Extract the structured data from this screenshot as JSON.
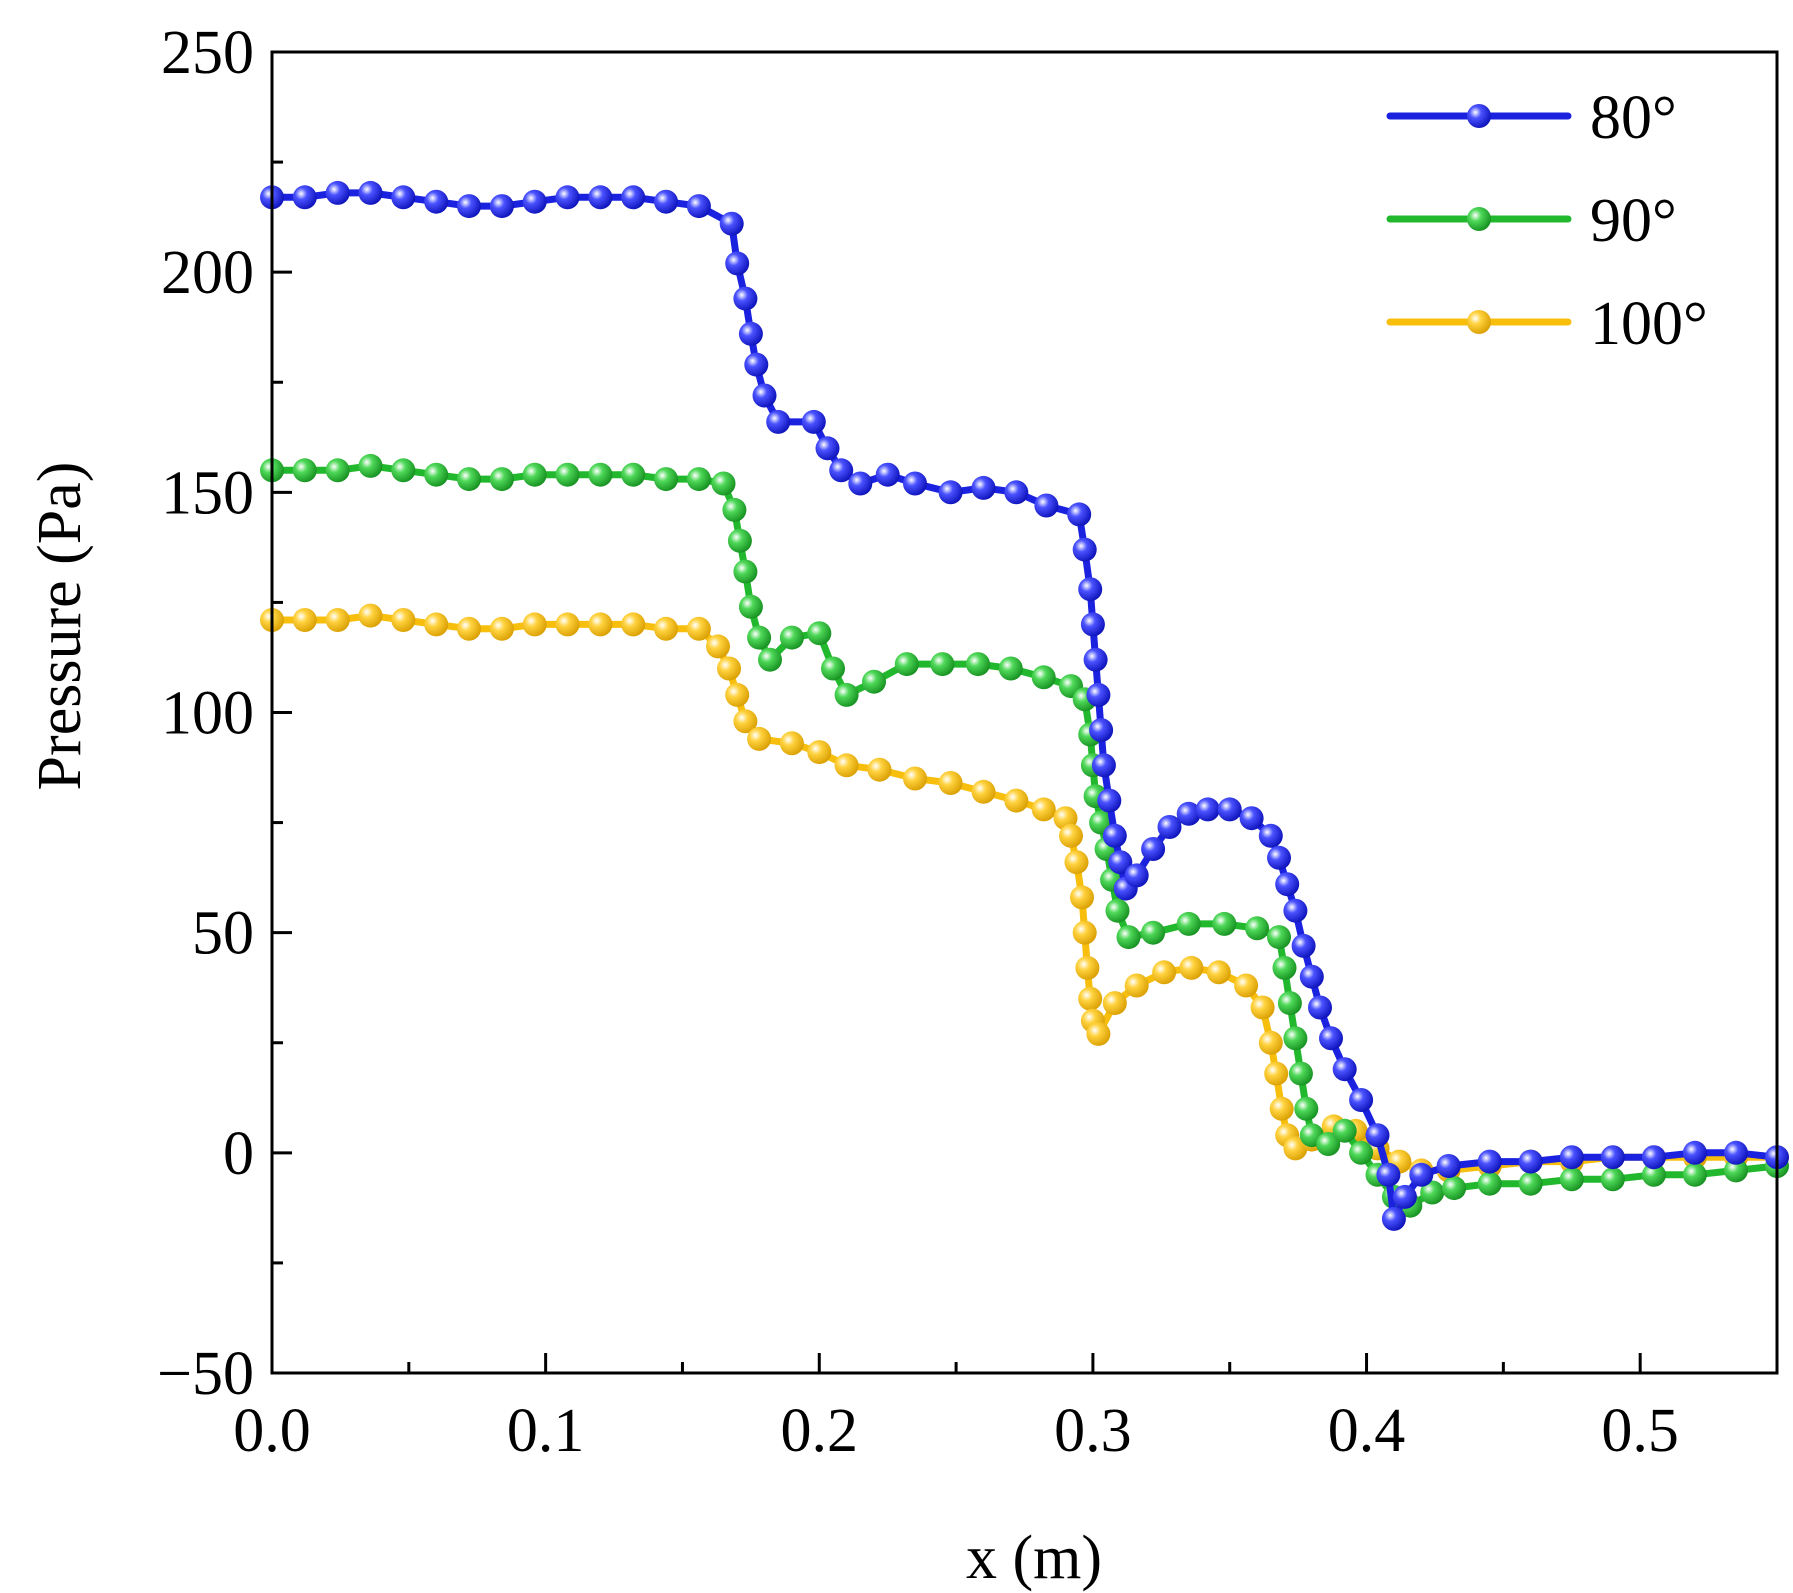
{
  "chart_data": {
    "type": "line",
    "title": "",
    "xlabel": "x (m)",
    "ylabel": "Pressure (Pa)",
    "xlim": [
      0.0,
      0.55
    ],
    "ylim": [
      -50,
      250
    ],
    "x_ticks": [
      0.0,
      0.1,
      0.2,
      0.3,
      0.4,
      0.5
    ],
    "x_tick_labels": [
      "0.0",
      "0.1",
      "0.2",
      "0.3",
      "0.4",
      "0.5"
    ],
    "y_ticks": [
      -50,
      0,
      50,
      100,
      150,
      200,
      250
    ],
    "y_tick_labels": [
      "−50",
      "0",
      "50",
      "100",
      "150",
      "200",
      "250"
    ],
    "legend_position": "top-right",
    "series": [
      {
        "name": "80°",
        "color": "#1a22e0",
        "points": [
          [
            0.0,
            217
          ],
          [
            0.012,
            217
          ],
          [
            0.024,
            218
          ],
          [
            0.036,
            218
          ],
          [
            0.048,
            217
          ],
          [
            0.06,
            216
          ],
          [
            0.072,
            215
          ],
          [
            0.084,
            215
          ],
          [
            0.096,
            216
          ],
          [
            0.108,
            217
          ],
          [
            0.12,
            217
          ],
          [
            0.132,
            217
          ],
          [
            0.144,
            216
          ],
          [
            0.156,
            215
          ],
          [
            0.168,
            211
          ],
          [
            0.17,
            202
          ],
          [
            0.173,
            194
          ],
          [
            0.175,
            186
          ],
          [
            0.177,
            179
          ],
          [
            0.18,
            172
          ],
          [
            0.185,
            166
          ],
          [
            0.198,
            166
          ],
          [
            0.203,
            160
          ],
          [
            0.208,
            155
          ],
          [
            0.215,
            152
          ],
          [
            0.225,
            154
          ],
          [
            0.235,
            152
          ],
          [
            0.248,
            150
          ],
          [
            0.26,
            151
          ],
          [
            0.272,
            150
          ],
          [
            0.283,
            147
          ],
          [
            0.295,
            145
          ],
          [
            0.297,
            137
          ],
          [
            0.299,
            128
          ],
          [
            0.3,
            120
          ],
          [
            0.301,
            112
          ],
          [
            0.302,
            104
          ],
          [
            0.303,
            96
          ],
          [
            0.304,
            88
          ],
          [
            0.306,
            80
          ],
          [
            0.308,
            72
          ],
          [
            0.31,
            66
          ],
          [
            0.312,
            60
          ],
          [
            0.316,
            63
          ],
          [
            0.322,
            69
          ],
          [
            0.328,
            74
          ],
          [
            0.335,
            77
          ],
          [
            0.342,
            78
          ],
          [
            0.35,
            78
          ],
          [
            0.358,
            76
          ],
          [
            0.365,
            72
          ],
          [
            0.368,
            67
          ],
          [
            0.371,
            61
          ],
          [
            0.374,
            55
          ],
          [
            0.377,
            47
          ],
          [
            0.38,
            40
          ],
          [
            0.383,
            33
          ],
          [
            0.387,
            26
          ],
          [
            0.392,
            19
          ],
          [
            0.398,
            12
          ],
          [
            0.404,
            4
          ],
          [
            0.408,
            -5
          ],
          [
            0.41,
            -15
          ],
          [
            0.414,
            -10
          ],
          [
            0.42,
            -5
          ],
          [
            0.43,
            -3
          ],
          [
            0.445,
            -2
          ],
          [
            0.46,
            -2
          ],
          [
            0.475,
            -1
          ],
          [
            0.49,
            -1
          ],
          [
            0.505,
            -1
          ],
          [
            0.52,
            0
          ],
          [
            0.535,
            0
          ],
          [
            0.55,
            -1
          ]
        ]
      },
      {
        "name": "90°",
        "color": "#22b82e",
        "points": [
          [
            0.0,
            155
          ],
          [
            0.012,
            155
          ],
          [
            0.024,
            155
          ],
          [
            0.036,
            156
          ],
          [
            0.048,
            155
          ],
          [
            0.06,
            154
          ],
          [
            0.072,
            153
          ],
          [
            0.084,
            153
          ],
          [
            0.096,
            154
          ],
          [
            0.108,
            154
          ],
          [
            0.12,
            154
          ],
          [
            0.132,
            154
          ],
          [
            0.144,
            153
          ],
          [
            0.156,
            153
          ],
          [
            0.165,
            152
          ],
          [
            0.169,
            146
          ],
          [
            0.171,
            139
          ],
          [
            0.173,
            132
          ],
          [
            0.175,
            124
          ],
          [
            0.178,
            117
          ],
          [
            0.182,
            112
          ],
          [
            0.19,
            117
          ],
          [
            0.2,
            118
          ],
          [
            0.205,
            110
          ],
          [
            0.21,
            104
          ],
          [
            0.22,
            107
          ],
          [
            0.232,
            111
          ],
          [
            0.245,
            111
          ],
          [
            0.258,
            111
          ],
          [
            0.27,
            110
          ],
          [
            0.282,
            108
          ],
          [
            0.292,
            106
          ],
          [
            0.297,
            103
          ],
          [
            0.299,
            95
          ],
          [
            0.3,
            88
          ],
          [
            0.301,
            81
          ],
          [
            0.303,
            75
          ],
          [
            0.305,
            69
          ],
          [
            0.307,
            62
          ],
          [
            0.309,
            55
          ],
          [
            0.313,
            49
          ],
          [
            0.322,
            50
          ],
          [
            0.335,
            52
          ],
          [
            0.348,
            52
          ],
          [
            0.36,
            51
          ],
          [
            0.368,
            49
          ],
          [
            0.37,
            42
          ],
          [
            0.372,
            34
          ],
          [
            0.374,
            26
          ],
          [
            0.376,
            18
          ],
          [
            0.378,
            10
          ],
          [
            0.38,
            4
          ],
          [
            0.386,
            2
          ],
          [
            0.392,
            5
          ],
          [
            0.398,
            0
          ],
          [
            0.404,
            -5
          ],
          [
            0.41,
            -10
          ],
          [
            0.416,
            -12
          ],
          [
            0.424,
            -9
          ],
          [
            0.432,
            -8
          ],
          [
            0.445,
            -7
          ],
          [
            0.46,
            -7
          ],
          [
            0.475,
            -6
          ],
          [
            0.49,
            -6
          ],
          [
            0.505,
            -5
          ],
          [
            0.52,
            -5
          ],
          [
            0.535,
            -4
          ],
          [
            0.55,
            -3
          ]
        ]
      },
      {
        "name": "100°",
        "color": "#f7be0c",
        "points": [
          [
            0.0,
            121
          ],
          [
            0.012,
            121
          ],
          [
            0.024,
            121
          ],
          [
            0.036,
            122
          ],
          [
            0.048,
            121
          ],
          [
            0.06,
            120
          ],
          [
            0.072,
            119
          ],
          [
            0.084,
            119
          ],
          [
            0.096,
            120
          ],
          [
            0.108,
            120
          ],
          [
            0.12,
            120
          ],
          [
            0.132,
            120
          ],
          [
            0.144,
            119
          ],
          [
            0.156,
            119
          ],
          [
            0.163,
            115
          ],
          [
            0.167,
            110
          ],
          [
            0.17,
            104
          ],
          [
            0.173,
            98
          ],
          [
            0.178,
            94
          ],
          [
            0.19,
            93
          ],
          [
            0.2,
            91
          ],
          [
            0.21,
            88
          ],
          [
            0.222,
            87
          ],
          [
            0.235,
            85
          ],
          [
            0.248,
            84
          ],
          [
            0.26,
            82
          ],
          [
            0.272,
            80
          ],
          [
            0.282,
            78
          ],
          [
            0.29,
            76
          ],
          [
            0.292,
            72
          ],
          [
            0.294,
            66
          ],
          [
            0.296,
            58
          ],
          [
            0.297,
            50
          ],
          [
            0.298,
            42
          ],
          [
            0.299,
            35
          ],
          [
            0.3,
            30
          ],
          [
            0.302,
            27
          ],
          [
            0.308,
            34
          ],
          [
            0.316,
            38
          ],
          [
            0.326,
            41
          ],
          [
            0.336,
            42
          ],
          [
            0.346,
            41
          ],
          [
            0.356,
            38
          ],
          [
            0.362,
            33
          ],
          [
            0.365,
            25
          ],
          [
            0.367,
            18
          ],
          [
            0.369,
            10
          ],
          [
            0.371,
            4
          ],
          [
            0.374,
            1
          ],
          [
            0.38,
            3
          ],
          [
            0.388,
            6
          ],
          [
            0.396,
            5
          ],
          [
            0.404,
            1
          ],
          [
            0.412,
            -2
          ],
          [
            0.42,
            -4
          ],
          [
            0.43,
            -4
          ],
          [
            0.445,
            -3
          ],
          [
            0.46,
            -2
          ],
          [
            0.475,
            -2
          ],
          [
            0.49,
            -1
          ],
          [
            0.505,
            -1
          ],
          [
            0.52,
            -1
          ],
          [
            0.535,
            -1
          ],
          [
            0.55,
            -1
          ]
        ]
      }
    ]
  }
}
